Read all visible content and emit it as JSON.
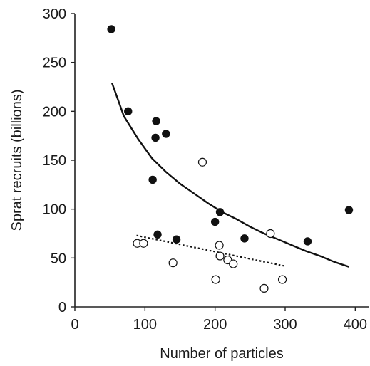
{
  "chart_data": {
    "type": "scatter",
    "title": "",
    "xlabel": "Number of particles",
    "ylabel": "Sprat recruits (billions)",
    "xlim": [
      0,
      420
    ],
    "ylim": [
      0,
      300
    ],
    "xticks": [
      0,
      100,
      200,
      300,
      400
    ],
    "yticks": [
      0,
      50,
      100,
      150,
      200,
      250,
      300
    ],
    "grid": false,
    "legend": "none",
    "series": [
      {
        "marker": "filled-circle",
        "color": "#111111",
        "points": [
          [
            52,
            284
          ],
          [
            76,
            200
          ],
          [
            111,
            130
          ],
          [
            116,
            190
          ],
          [
            115,
            173
          ],
          [
            130,
            177
          ],
          [
            118,
            74
          ],
          [
            145,
            69
          ],
          [
            200,
            87
          ],
          [
            207,
            97
          ],
          [
            242,
            70
          ],
          [
            332,
            67
          ],
          [
            391,
            99
          ]
        ],
        "fit": {
          "style": "solid",
          "points": [
            [
              53,
              229
            ],
            [
              70,
              195
            ],
            [
              90,
              172
            ],
            [
              110,
              152
            ],
            [
              130,
              138
            ],
            [
              150,
              126
            ],
            [
              170,
              116
            ],
            [
              190,
              106
            ],
            [
              210,
              97
            ],
            [
              230,
              90
            ],
            [
              250,
              82
            ],
            [
              270,
              75
            ],
            [
              290,
              69
            ],
            [
              310,
              63
            ],
            [
              330,
              57
            ],
            [
              350,
              52
            ],
            [
              370,
              46
            ],
            [
              391,
              41
            ]
          ]
        }
      },
      {
        "marker": "open-circle",
        "color": "#111111",
        "points": [
          [
            89,
            65
          ],
          [
            98,
            65
          ],
          [
            140,
            45
          ],
          [
            182,
            148
          ],
          [
            201,
            28
          ],
          [
            206,
            63
          ],
          [
            207,
            52
          ],
          [
            218,
            48
          ],
          [
            226,
            44
          ],
          [
            279,
            75
          ],
          [
            270,
            19
          ],
          [
            296,
            28
          ]
        ],
        "fit": {
          "style": "dotted",
          "points": [
            [
              88,
              73
            ],
            [
              298,
              42
            ]
          ]
        }
      }
    ]
  }
}
